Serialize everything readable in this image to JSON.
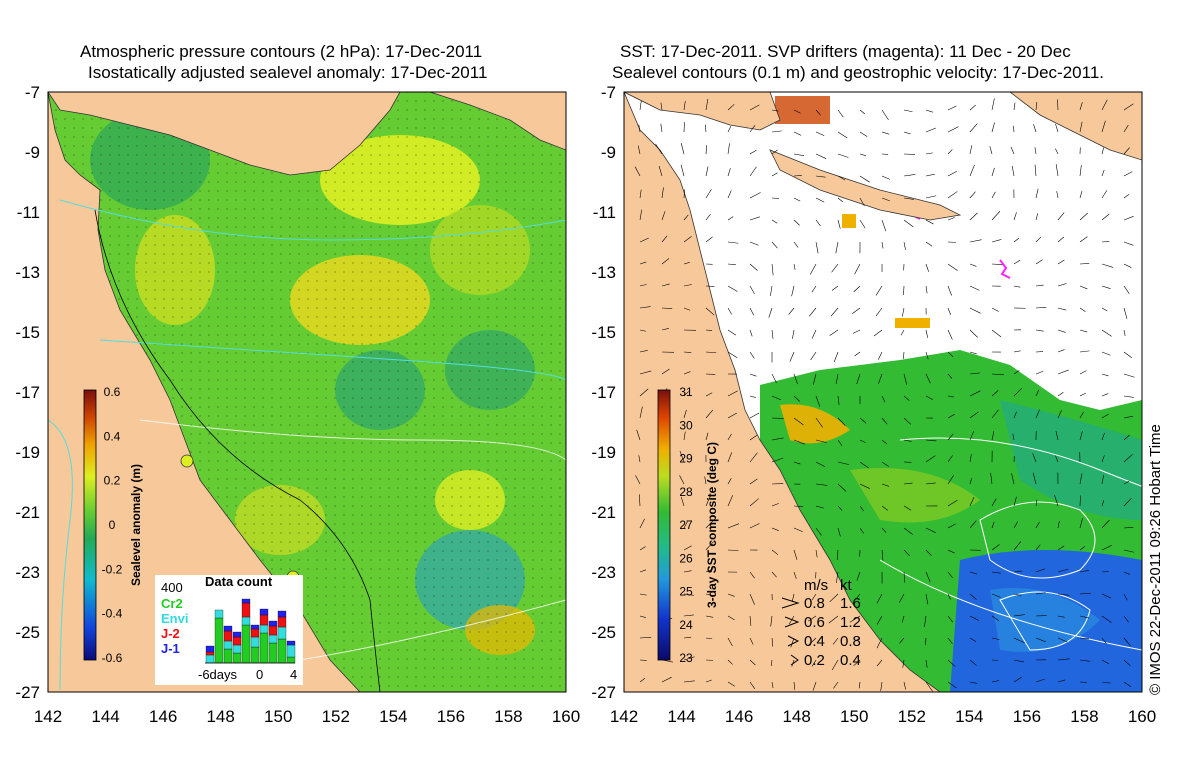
{
  "left_panel": {
    "title_line1": "Atmospheric pressure contours (2 hPa): 17-Dec-2011",
    "title_line2": "Isostatically adjusted sealevel anomaly: 17-Dec-2011",
    "colorbar": {
      "label": "Sealevel anomaly (m)",
      "ticks": [
        "0.6",
        "0.4",
        "0.2",
        "0",
        "-0.2",
        "-0.4",
        "-0.6"
      ]
    },
    "data_count": {
      "title": "Data count",
      "max_label": "400",
      "missions": [
        {
          "name": "Cr2",
          "color": "#22cc22"
        },
        {
          "name": "Envi",
          "color": "#33dddd"
        },
        {
          "name": "J-2",
          "color": "#ee1111"
        },
        {
          "name": "J-1",
          "color": "#2222ee"
        }
      ],
      "x_labels": [
        "-6days",
        "0",
        "4"
      ]
    }
  },
  "right_panel": {
    "title_line1": "SST: 17-Dec-2011. SVP drifters (magenta): 11 Dec - 20 Dec",
    "title_line2": "Sealevel contours (0.1 m) and geostrophic velocity: 17-Dec-2011.",
    "colorbar": {
      "label": "3-day SST composite (deg C)",
      "ticks": [
        "31",
        "30",
        "29",
        "28",
        "27",
        "26",
        "25",
        "24",
        "23"
      ]
    },
    "velocity_legend": {
      "header_ms": "m/s",
      "header_kt": "kt",
      "rows": [
        {
          "ms": "0.8",
          "kt": "1.6"
        },
        {
          "ms": "0.6",
          "kt": "1.2"
        },
        {
          "ms": "0.4",
          "kt": "0.8"
        },
        {
          "ms": "0.2",
          "kt": "0.4"
        }
      ]
    }
  },
  "axes": {
    "lon_labels": [
      "142",
      "144",
      "146",
      "148",
      "150",
      "152",
      "154",
      "156",
      "158",
      "160"
    ],
    "lat_labels": [
      "-7",
      "-9",
      "-11",
      "-13",
      "-15",
      "-17",
      "-19",
      "-21",
      "-23",
      "-25",
      "-27"
    ]
  },
  "credit": "© IMOS 22-Dec-2011 09:26 Hobart Time",
  "colors": {
    "land": "#f7c89a",
    "sea_green": "#66cc33",
    "sea_yellow": "#dde633",
    "ocean_blue": "#2266ee"
  }
}
